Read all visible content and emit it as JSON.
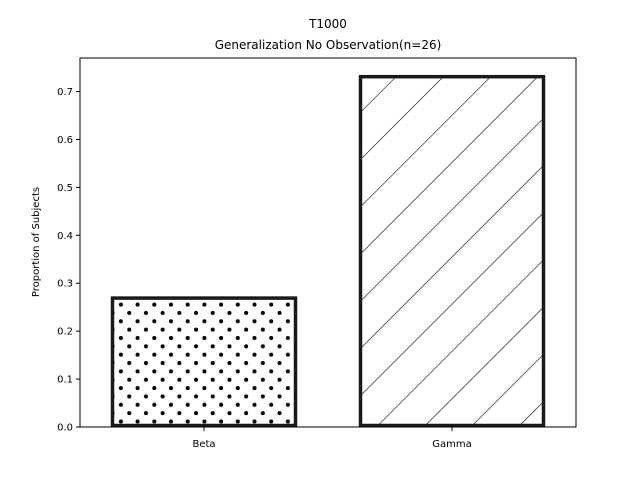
{
  "chart_data": {
    "type": "bar",
    "title": "T1000",
    "subtitle": "Generalization No Observation(n=26)",
    "xlabel": "",
    "ylabel": "Proportion of Subjects",
    "categories": [
      "Beta",
      "Gamma"
    ],
    "values": [
      0.269,
      0.731
    ],
    "patterns": [
      "dots",
      "diagonal-hatch"
    ],
    "ylim": [
      0,
      0.77
    ],
    "yticks": [
      0.0,
      0.1,
      0.2,
      0.3,
      0.4,
      0.5,
      0.6,
      0.7
    ],
    "grid": false,
    "colors": {
      "edge": "#1a1a1a",
      "fill": "#ffffff",
      "pattern": "#000000"
    }
  }
}
